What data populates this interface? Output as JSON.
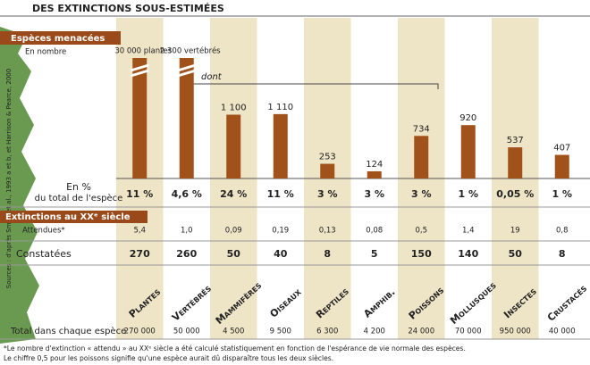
{
  "chart_data": {
    "type": "bar",
    "title": "DES EXTINCTIONS SOUS-ESTIMÉES",
    "subtitle": "Espèces menacées",
    "unit_label": "En nombre",
    "annotation": "dont",
    "source": "Sources : d'après Smith et al., 1993 a et b, et Harrison & Pearce, 2000",
    "categories": [
      "Plantes",
      "Vertébrés",
      "Mammifères",
      "Oiseaux",
      "Reptiles",
      "Amphib.",
      "Poissons",
      "Mollusques",
      "Insectes",
      "Crustacés"
    ],
    "values": [
      30000,
      2300,
      1100,
      1110,
      253,
      124,
      734,
      920,
      537,
      407
    ],
    "value_labels": [
      "30 000 plantes",
      "2 300 vertébrés",
      "1 100",
      "1 110",
      "253",
      "124",
      "734",
      "920",
      "537",
      "407"
    ],
    "color": "#a0521a"
  },
  "table": {
    "percent_label": [
      "En %",
      "du total de l'espèce"
    ],
    "percent": [
      "11 %",
      "4,6 %",
      "24 %",
      "11 %",
      "3 %",
      "3 %",
      "3 %",
      "1 %",
      "0,05 %",
      "1 %"
    ],
    "section": "Extinctions au XXᵉ siècle",
    "rows": [
      {
        "label": "Attendues*",
        "values": [
          "5,4",
          "1,0",
          "0,09",
          "0,19",
          "0,13",
          "0,08",
          "0,5",
          "1,4",
          "19",
          "0,8"
        ]
      },
      {
        "label": "Constatées",
        "values": [
          "270",
          "260",
          "50",
          "40",
          "8",
          "5",
          "150",
          "140",
          "50",
          "8"
        ]
      }
    ],
    "total_label": "Total dans chaque espèce",
    "totals": [
      "270 000",
      "50 000",
      "4 500",
      "9 500",
      "6 300",
      "4 200",
      "24 000",
      "70 000",
      "950 000",
      "40 000"
    ]
  },
  "footnotes": [
    "*Le nombre d'extinction « attendu » au XXᵉ siècle a été calculé statistiquement en fonction de l'espérance de vie normale des espèces.",
    "Le chiffre 0,5 pour les poissons signifie qu'une espèce aurait dû disparaître tous les deux siècles."
  ]
}
